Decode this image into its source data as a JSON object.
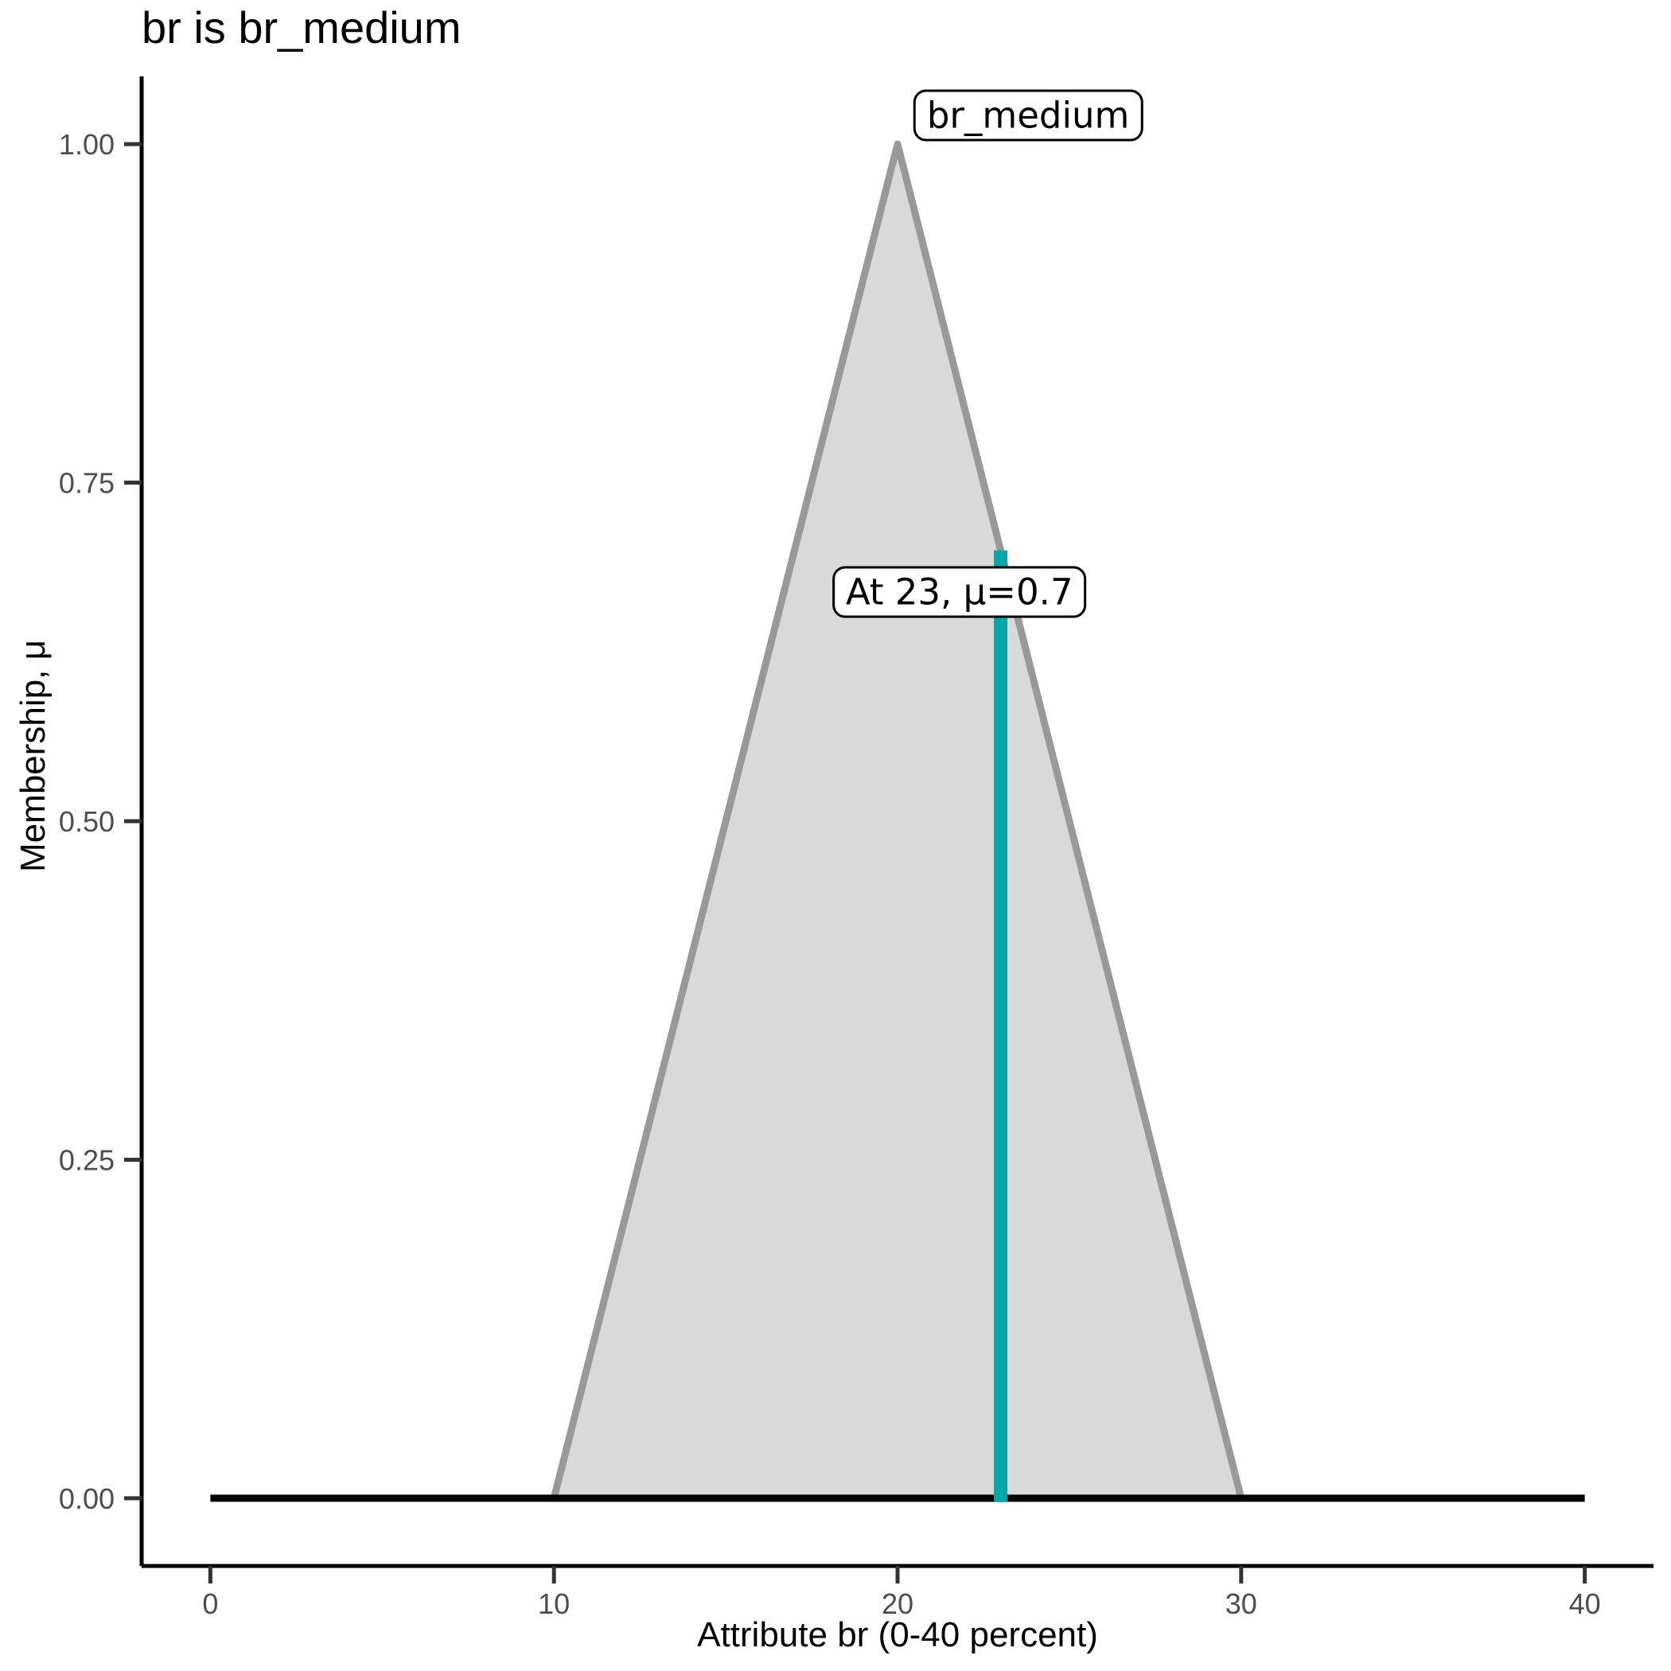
{
  "title": "br is br_medium",
  "chart_data": {
    "type": "area",
    "title": "br is br_medium",
    "xlabel": "Attribute br (0-40 percent)",
    "ylabel": "Membership, μ",
    "xlim": [
      -2,
      42
    ],
    "ylim": [
      -0.05,
      1.05
    ],
    "grid": "off",
    "legend": "none",
    "x_ticks": {
      "values": [
        0,
        10,
        20,
        30,
        40
      ],
      "labels": [
        "0",
        "10",
        "20",
        "30",
        "40"
      ]
    },
    "y_ticks": {
      "values": [
        0,
        0.25,
        0.5,
        0.75,
        1.0
      ],
      "labels": [
        "0.00",
        "0.25",
        "0.50",
        "0.75",
        "1.00"
      ]
    },
    "series": [
      {
        "name": "br_medium",
        "kind": "membership-polygon",
        "points": [
          [
            10,
            0
          ],
          [
            20,
            1
          ],
          [
            30,
            0
          ]
        ],
        "fill": "#D9D9D9",
        "stroke": "#999999",
        "stroke_width": 9
      },
      {
        "name": "zero-baseline",
        "kind": "line",
        "points": [
          [
            0,
            0
          ],
          [
            40,
            0
          ]
        ],
        "stroke": "#000000",
        "stroke_width": 9
      },
      {
        "name": "crisp-input",
        "kind": "vline",
        "x": 23,
        "mu": 0.7,
        "stroke": "#00A8AC",
        "stroke_width": 17
      }
    ],
    "annotations": [
      {
        "text": "br_medium",
        "x": 23.8,
        "y": 1.021
      },
      {
        "text": "At 23, μ=0.7",
        "x": 21.8,
        "y": 0.669
      }
    ],
    "colors": {
      "axis": "#000000",
      "ticks": "#333333",
      "tick_labels": "#4d4d4d"
    }
  }
}
